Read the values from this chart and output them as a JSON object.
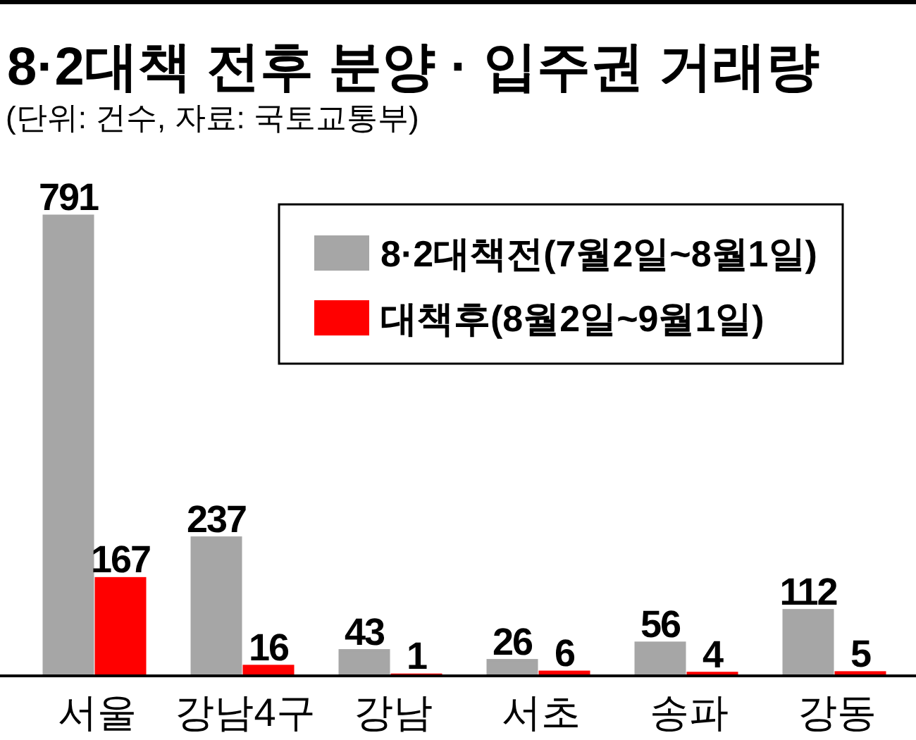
{
  "chart_data": {
    "type": "bar",
    "title": "8·2대책 전후 분양 · 입주권 거래량",
    "subtitle": "(단위: 건수, 자료: 국토교통부)",
    "categories": [
      "서울",
      "강남4구",
      "강남",
      "서초",
      "송파",
      "강동"
    ],
    "series": [
      {
        "name": "8·2대책전(7월2일~8월1일)",
        "color": "#a6a6a6",
        "values": [
          791,
          237,
          43,
          26,
          56,
          112
        ]
      },
      {
        "name": "대책후(8월2일~9월1일)",
        "color": "#ff0000",
        "values": [
          167,
          16,
          1,
          6,
          4,
          5
        ]
      }
    ],
    "data_labels": true,
    "legend": "top right"
  }
}
